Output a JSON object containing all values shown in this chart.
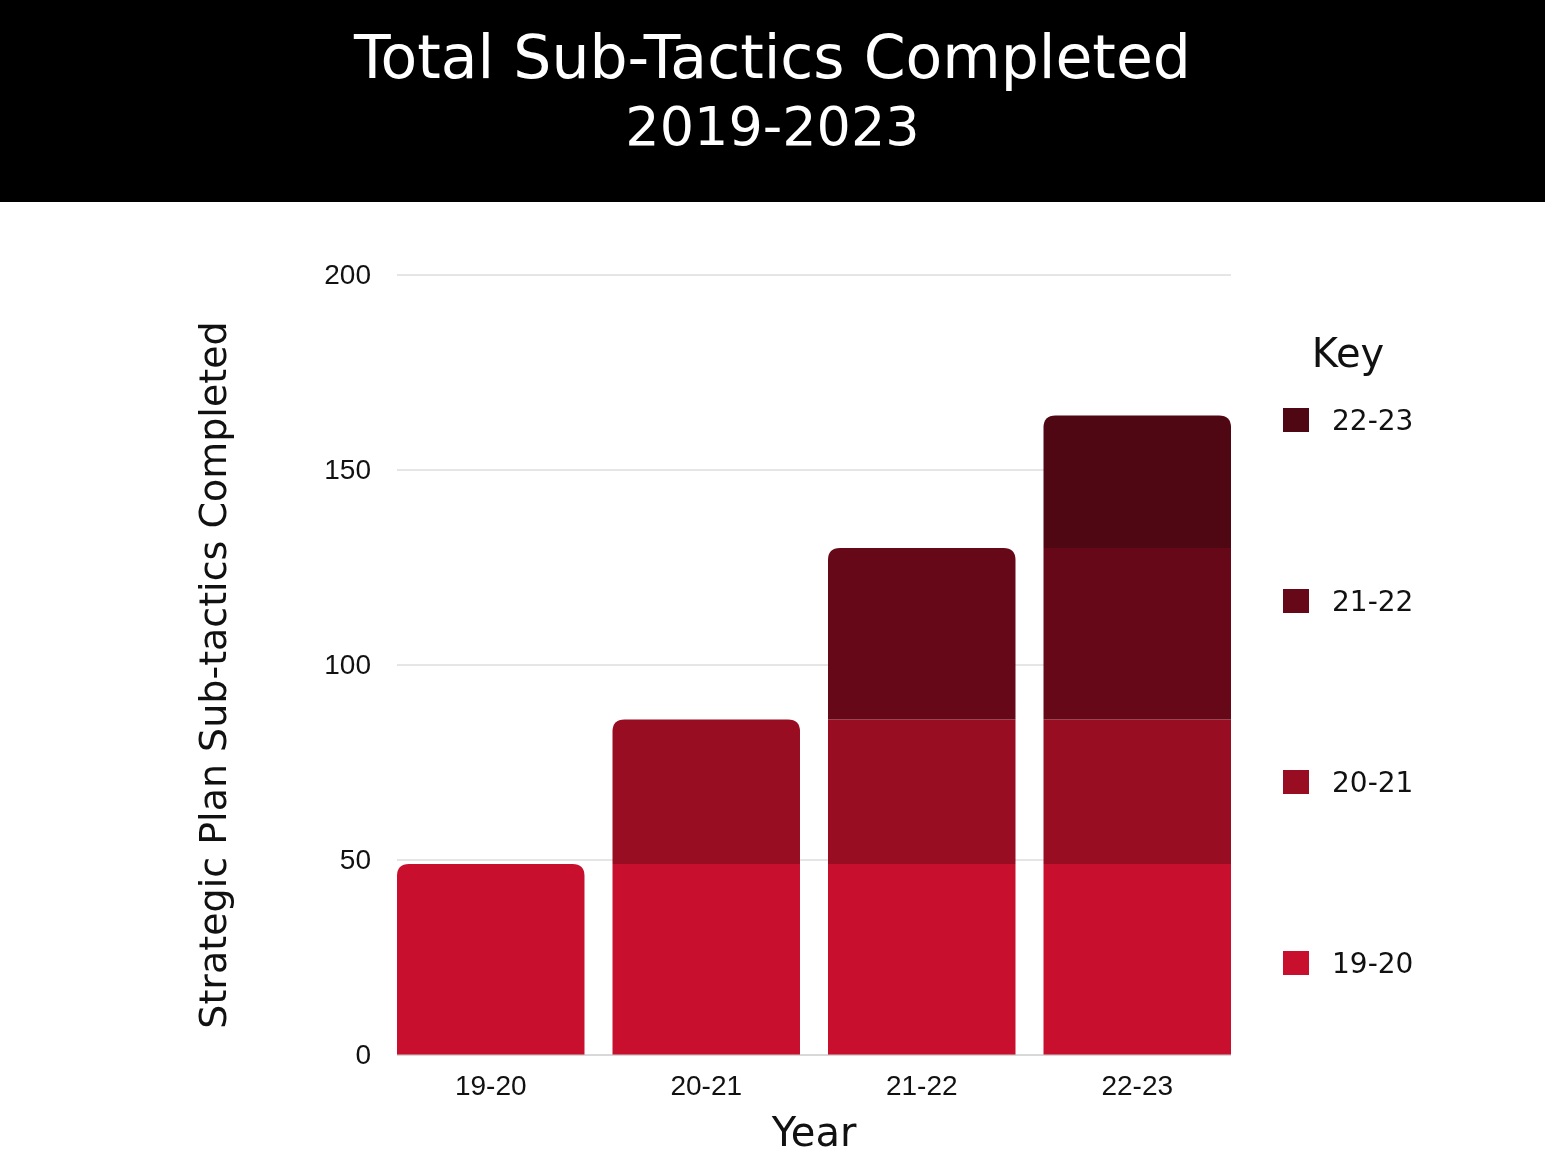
{
  "chart_data": {
    "type": "bar",
    "title": "Total Sub-Tactics Completed",
    "subtitle": "2019-2023",
    "xlabel": "Year",
    "ylabel": "Strategic Plan Sub-tactics Completed",
    "legend_title": "Key",
    "categories": [
      "19-20",
      "20-21",
      "21-22",
      "22-23"
    ],
    "stacked": true,
    "series": [
      {
        "name": "19-20",
        "color": "#c8102e",
        "values": [
          49,
          49,
          49,
          49
        ]
      },
      {
        "name": "20-21",
        "color": "#990d22",
        "values": [
          null,
          37,
          37,
          37
        ]
      },
      {
        "name": "21-22",
        "color": "#660817",
        "values": [
          null,
          null,
          44,
          44
        ]
      },
      {
        "name": "22-23",
        "color": "#4f0713",
        "values": [
          null,
          null,
          null,
          34
        ]
      }
    ],
    "ylim": [
      0,
      200
    ],
    "yticks": [
      0,
      50,
      100,
      150,
      200
    ],
    "grid": "y",
    "legend": "right"
  }
}
